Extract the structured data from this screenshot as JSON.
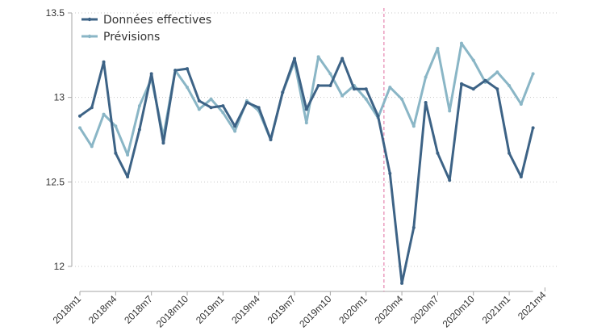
{
  "chart_data": {
    "type": "line",
    "title": "",
    "xlabel": "",
    "ylabel": "",
    "ylim": [
      12,
      13.5
    ],
    "yticks": [
      12,
      12.5,
      13,
      13.5
    ],
    "ytick_labels": [
      "12",
      "12.5",
      "13",
      "13.5"
    ],
    "grid": "horizontal dotted",
    "legend_position": "top-left",
    "x": [
      "2018m1",
      "2018m2",
      "2018m3",
      "2018m4",
      "2018m5",
      "2018m6",
      "2018m7",
      "2018m8",
      "2018m9",
      "2018m10",
      "2018m11",
      "2018m12",
      "2019m1",
      "2019m2",
      "2019m3",
      "2019m4",
      "2019m5",
      "2019m6",
      "2019m7",
      "2019m8",
      "2019m9",
      "2019m10",
      "2019m11",
      "2019m12",
      "2020m1",
      "2020m2",
      "2020m3",
      "2020m4",
      "2020m5",
      "2020m6",
      "2020m7",
      "2020m8",
      "2020m9",
      "2020m10",
      "2020m11",
      "2020m12",
      "2021m1",
      "2021m2",
      "2021m3"
    ],
    "xtick_labels": [
      "2018m1",
      "2018m4",
      "2018m7",
      "2018m10",
      "2019m1",
      "2019m4",
      "2019m7",
      "2019m10",
      "2020m1",
      "2020m4",
      "2020m7",
      "2020m10",
      "2021m1",
      "2021m4"
    ],
    "vertical_marker": {
      "between": [
        "2020m2",
        "2020m3"
      ],
      "color": "#e06c9f",
      "style": "dashed"
    },
    "series": [
      {
        "name": "Données effectives",
        "color": "#3d6386",
        "values": [
          12.89,
          12.94,
          13.21,
          12.67,
          12.53,
          12.81,
          13.14,
          12.73,
          13.16,
          13.17,
          12.98,
          12.94,
          12.95,
          12.83,
          12.97,
          12.94,
          12.75,
          13.03,
          13.23,
          12.93,
          13.07,
          13.07,
          13.23,
          13.05,
          13.05,
          12.89,
          12.55,
          11.9,
          12.23,
          12.97,
          12.67,
          12.51,
          13.08,
          13.05,
          13.1,
          13.05,
          12.67,
          12.53,
          12.82
        ]
      },
      {
        "name": "Prévisions",
        "color": "#8ab6c6",
        "values": [
          12.82,
          12.71,
          12.9,
          12.83,
          12.66,
          12.95,
          13.11,
          12.77,
          13.16,
          13.06,
          12.93,
          12.99,
          12.91,
          12.8,
          12.98,
          12.92,
          12.75,
          13.03,
          13.21,
          12.85,
          13.24,
          13.14,
          13.01,
          13.07,
          12.99,
          12.88,
          13.06,
          12.99,
          12.83,
          13.12,
          13.29,
          12.92,
          13.32,
          13.22,
          13.09,
          13.15,
          13.07,
          12.96,
          13.14
        ]
      }
    ]
  }
}
